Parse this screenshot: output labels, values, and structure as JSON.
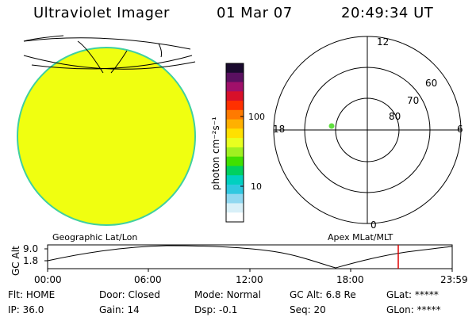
{
  "header": {
    "instrument": "Ultraviolet Imager",
    "date": "01 Mar 07",
    "time": "20:49:34 UT"
  },
  "colorbar": {
    "label": "photon cm⁻²s⁻¹",
    "ticks": [
      "100",
      "10"
    ],
    "scale": "log",
    "colors": [
      "#1a0a2e",
      "#5a1060",
      "#a0106a",
      "#d8102a",
      "#ff3000",
      "#ff7a00",
      "#ffb000",
      "#ffe000",
      "#e8ff20",
      "#a0f020",
      "#40e000",
      "#00d060",
      "#00d0c0",
      "#30c8e0",
      "#90d8f0",
      "#d8f0f8",
      "#ffffff"
    ]
  },
  "polar": {
    "lat_labels": [
      "80",
      "70",
      "60"
    ],
    "mlt_labels": {
      "top": "12",
      "left": "18",
      "right": "6",
      "bottom": "0"
    }
  },
  "panel_labels": {
    "left": "Geographic Lat/Lon",
    "right": "Apex MLat/MLT"
  },
  "altitude_plot": {
    "ylabel": "GC Alt",
    "y_ticks": [
      "9.0",
      "1.8"
    ],
    "x_ticks": [
      "00:00",
      "06:00",
      "12:00",
      "18:00",
      "23:59"
    ],
    "current_time_marker": "20:49"
  },
  "status": {
    "row1": [
      {
        "label": "Flt:",
        "value": "HOME"
      },
      {
        "label": "Door:",
        "value": "Closed"
      },
      {
        "label": "Mode:",
        "value": "Normal"
      },
      {
        "label": "GC Alt:",
        "value": "6.8 Re"
      },
      {
        "label": "GLat:",
        "value": "*****"
      }
    ],
    "row2": [
      {
        "label": "IP:",
        "value": "36.0"
      },
      {
        "label": "Gain:",
        "value": "14"
      },
      {
        "label": "Dsp:",
        "value": "-0.1"
      },
      {
        "label": "Seq:",
        "value": "20"
      },
      {
        "label": "GLon:",
        "value": "*****"
      }
    ]
  },
  "colors": {
    "earth_fill": "#f0ff10",
    "earth_edge": "#40d0a0",
    "marker": "#60e040",
    "time_marker": "#e00000"
  }
}
